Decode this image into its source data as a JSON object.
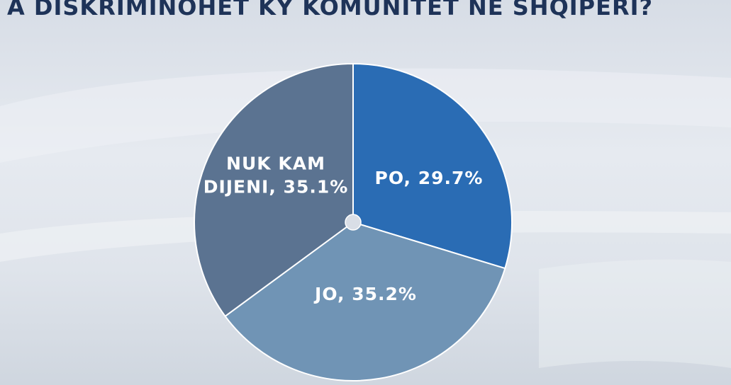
{
  "title": "A DISKRIMINOHET KY KOMUNITET NË SHQIPËRI?",
  "chart_data": {
    "type": "pie",
    "title": "A DISKRIMINOHET KY KOMUNITET NË SHQIPËRI?",
    "slices": [
      {
        "label": "PO",
        "value": 29.7,
        "display": [
          "PO, 29.7%"
        ],
        "color": "#2a6cb4"
      },
      {
        "label": "JO",
        "value": 35.2,
        "display": [
          "JO, 35.2%"
        ],
        "color": "#7094b5"
      },
      {
        "label": "NUK KAM DIJENI",
        "value": 35.1,
        "display": [
          "NUK KAM",
          "DIJENI, 35.1%"
        ],
        "color": "#5b7391"
      }
    ],
    "start_angle": "12 o'clock",
    "direction": "clockwise"
  }
}
